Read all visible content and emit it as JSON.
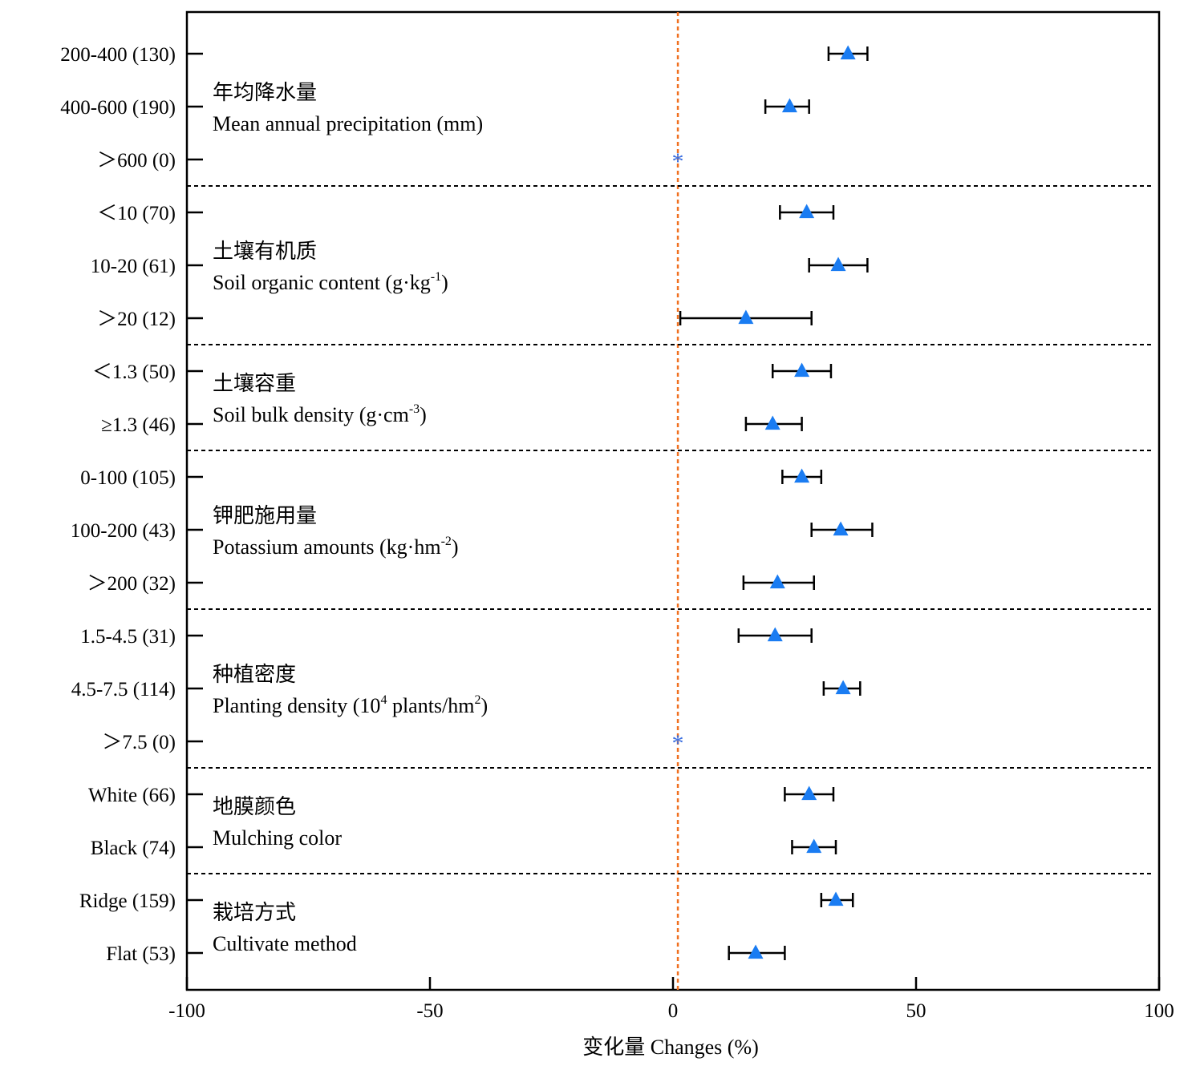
{
  "chart_data": {
    "type": "forest",
    "xlabel": "变化量 Changes (%)",
    "xlim": [
      -100,
      100
    ],
    "xticks": [
      -100,
      -50,
      0,
      50,
      100
    ],
    "reference_line_x": 1,
    "colors": {
      "marker": "#1a7cf2",
      "reference_line": "#f07020",
      "axis": "#000000",
      "missing": "#3a6ee0"
    },
    "missing_symbol": "*",
    "groups": [
      {
        "label_cn": "年均降水量",
        "label_en": "Mean annual precipitation (mm)",
        "label_en_super": "",
        "label_en_tail": "",
        "rows": [
          {
            "label": "200-400 (130)",
            "mean": 36,
            "low": 32,
            "high": 40
          },
          {
            "label": "400-600 (190)",
            "mean": 24,
            "low": 19,
            "high": 28
          },
          {
            "label": "＞600 (0)",
            "mean": null,
            "low": null,
            "high": null
          }
        ]
      },
      {
        "label_cn": "土壤有机质",
        "label_en": "Soil organic content (g·kg",
        "label_en_super": "-1",
        "label_en_tail": ")",
        "rows": [
          {
            "label": "＜10 (70)",
            "mean": 27.5,
            "low": 22,
            "high": 33
          },
          {
            "label": "10-20 (61)",
            "mean": 34,
            "low": 28,
            "high": 40
          },
          {
            "label": "＞20 (12)",
            "mean": 15,
            "low": 1.5,
            "high": 28.5
          }
        ]
      },
      {
        "label_cn": "土壤容重",
        "label_en": "Soil bulk density (g·cm",
        "label_en_super": "-3",
        "label_en_tail": ")",
        "rows": [
          {
            "label": "＜1.3 (50)",
            "mean": 26.5,
            "low": 20.5,
            "high": 32.5
          },
          {
            "label": "≥1.3 (46)",
            "mean": 20.5,
            "low": 15,
            "high": 26.5
          }
        ]
      },
      {
        "label_cn": "钾肥施用量",
        "label_en": "Potassium amounts (kg·hm",
        "label_en_super": "-2",
        "label_en_tail": ")",
        "rows": [
          {
            "label": "0-100 (105)",
            "mean": 26.5,
            "low": 22.5,
            "high": 30.5
          },
          {
            "label": "100-200 (43)",
            "mean": 34.5,
            "low": 28.5,
            "high": 41
          },
          {
            "label": "＞200 (32)",
            "mean": 21.5,
            "low": 14.5,
            "high": 29
          }
        ]
      },
      {
        "label_cn": "种植密度",
        "label_en": "Planting density (10",
        "label_en_super": "4",
        "label_en_tail": " plants/hm",
        "label_en_super2": "2",
        "label_en_tail2": ")",
        "rows": [
          {
            "label": "1.5-4.5 (31)",
            "mean": 21,
            "low": 13.5,
            "high": 28.5
          },
          {
            "label": "4.5-7.5 (114)",
            "mean": 35,
            "low": 31,
            "high": 38.5
          },
          {
            "label": "＞7.5 (0)",
            "mean": null,
            "low": null,
            "high": null
          }
        ]
      },
      {
        "label_cn": "地膜颜色",
        "label_en": "Mulching color",
        "label_en_super": "",
        "label_en_tail": "",
        "rows": [
          {
            "label": "White (66)",
            "mean": 28,
            "low": 23,
            "high": 33
          },
          {
            "label": "Black (74)",
            "mean": 29,
            "low": 24.5,
            "high": 33.5
          }
        ]
      },
      {
        "label_cn": "栽培方式",
        "label_en": "Cultivate method",
        "label_en_super": "",
        "label_en_tail": "",
        "rows": [
          {
            "label": "Ridge (159)",
            "mean": 33.5,
            "low": 30.5,
            "high": 37
          },
          {
            "label": "Flat (53)",
            "mean": 17,
            "low": 11.5,
            "high": 23
          }
        ]
      }
    ]
  }
}
